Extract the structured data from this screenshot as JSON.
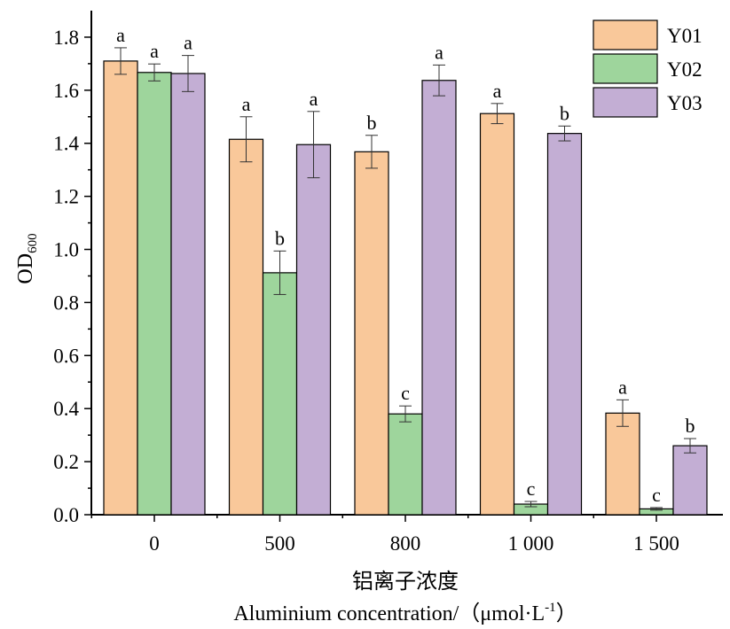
{
  "chart_data": {
    "type": "bar",
    "categories": [
      "0",
      "500",
      "800",
      "1 000",
      "1 500"
    ],
    "series": [
      {
        "name": "Y01",
        "color": "#F9C89A",
        "values": [
          1.71,
          1.415,
          1.368,
          1.512,
          0.383
        ],
        "errors": [
          0.05,
          0.085,
          0.062,
          0.038,
          0.05
        ],
        "letters": [
          "a",
          "a",
          "b",
          "a",
          "a"
        ]
      },
      {
        "name": "Y02",
        "color": "#9ED59C",
        "values": [
          1.667,
          0.912,
          0.38,
          0.04,
          0.022
        ],
        "errors": [
          0.032,
          0.082,
          0.03,
          0.01,
          0.005
        ],
        "letters": [
          "a",
          "b",
          "c",
          "c",
          "c"
        ]
      },
      {
        "name": "Y03",
        "color": "#C3AED4",
        "values": [
          1.663,
          1.395,
          1.637,
          1.437,
          0.26
        ],
        "errors": [
          0.068,
          0.125,
          0.058,
          0.028,
          0.027
        ],
        "letters": [
          "a",
          "a",
          "a",
          "b",
          "b"
        ]
      }
    ],
    "ylabel_main": "OD",
    "ylabel_sub": "600",
    "xlabel_cn": "铝离子浓度",
    "xlabel_en_main": "Aluminium concentration/（μmol·L",
    "xlabel_en_sup": "-1",
    "xlabel_en_end": "）",
    "ylim": [
      0,
      1.9
    ],
    "yticks": [
      "0.0",
      "0.2",
      "0.4",
      "0.6",
      "0.8",
      "1.0",
      "1.2",
      "1.4",
      "1.6",
      "1.8"
    ],
    "legend_position": "top-right",
    "grid": false
  }
}
